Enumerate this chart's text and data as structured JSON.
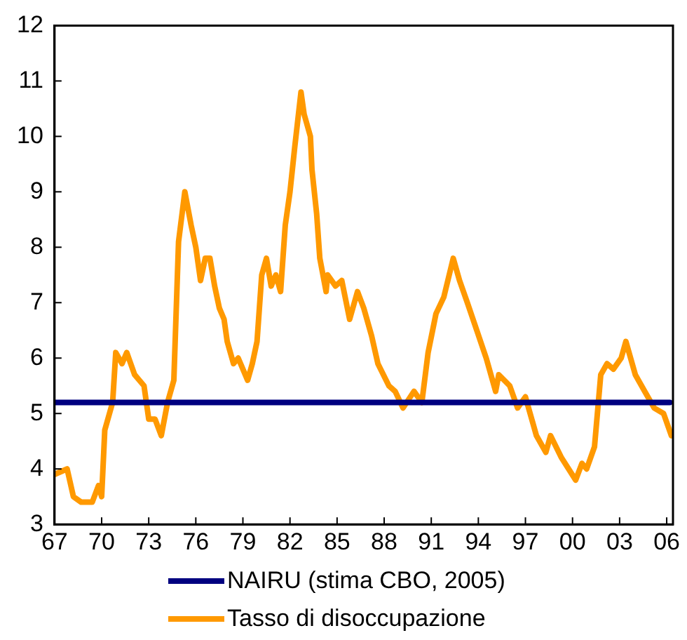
{
  "chart_data": {
    "type": "line",
    "xlim": [
      1967,
      2006.4
    ],
    "ylim": [
      3,
      12
    ],
    "xticks": [
      {
        "value": 1967,
        "label": "67"
      },
      {
        "value": 1970,
        "label": "70"
      },
      {
        "value": 1973,
        "label": "73"
      },
      {
        "value": 1976,
        "label": "76"
      },
      {
        "value": 1979,
        "label": "79"
      },
      {
        "value": 1982,
        "label": "82"
      },
      {
        "value": 1985,
        "label": "85"
      },
      {
        "value": 1988,
        "label": "88"
      },
      {
        "value": 1991,
        "label": "91"
      },
      {
        "value": 1994,
        "label": "94"
      },
      {
        "value": 1997,
        "label": "97"
      },
      {
        "value": 2000,
        "label": "00"
      },
      {
        "value": 2003,
        "label": "03"
      },
      {
        "value": 2006,
        "label": "06"
      }
    ],
    "yticks": [
      3,
      4,
      5,
      6,
      7,
      8,
      9,
      10,
      11,
      12
    ],
    "grid": false,
    "legend": "bottom",
    "marker": "none",
    "line_style": "solid",
    "series": [
      {
        "name": "NAIRU (stima CBO, 2005)",
        "color": "#000080",
        "x": [
          1967,
          2006.2
        ],
        "values": [
          5.2,
          5.2
        ]
      },
      {
        "name": "Tasso di disoccupazione",
        "color": "#ff9900",
        "x": [
          1967.0,
          1967.8,
          1968.2,
          1968.7,
          1969.4,
          1969.8,
          1970.0,
          1970.2,
          1970.7,
          1970.9,
          1971.3,
          1971.6,
          1972.1,
          1972.7,
          1973.0,
          1973.4,
          1973.8,
          1974.2,
          1974.6,
          1974.9,
          1975.3,
          1975.7,
          1976.0,
          1976.3,
          1976.6,
          1976.9,
          1977.2,
          1977.5,
          1977.8,
          1978.0,
          1978.4,
          1978.7,
          1979.3,
          1979.6,
          1979.9,
          1980.2,
          1980.5,
          1980.8,
          1981.1,
          1981.4,
          1981.7,
          1982.0,
          1982.3,
          1982.7,
          1982.9,
          1983.3,
          1983.4,
          1983.7,
          1983.9,
          1984.3,
          1984.4,
          1984.9,
          1985.3,
          1985.8,
          1986.3,
          1986.7,
          1987.2,
          1987.6,
          1988.3,
          1988.7,
          1989.2,
          1989.9,
          1990.4,
          1990.8,
          1991.3,
          1991.8,
          1992.4,
          1992.8,
          1993.3,
          1993.9,
          1994.5,
          1995.1,
          1995.3,
          1996.0,
          1996.5,
          1997.0,
          1997.7,
          1998.3,
          1998.6,
          1999.3,
          2000.2,
          2000.6,
          2000.9,
          2001.4,
          2001.8,
          2002.2,
          2002.6,
          2003.1,
          2003.4,
          2004.0,
          2004.6,
          2005.2,
          2005.8,
          2006.3
        ],
        "values": [
          3.9,
          4.0,
          3.5,
          3.4,
          3.4,
          3.7,
          3.5,
          4.7,
          5.2,
          6.1,
          5.9,
          6.1,
          5.7,
          5.5,
          4.9,
          4.9,
          4.6,
          5.2,
          5.6,
          8.1,
          9.0,
          8.4,
          8.0,
          7.4,
          7.8,
          7.8,
          7.3,
          6.9,
          6.7,
          6.3,
          5.9,
          6.0,
          5.6,
          5.9,
          6.3,
          7.5,
          7.8,
          7.3,
          7.5,
          7.2,
          8.4,
          9.0,
          9.8,
          10.8,
          10.4,
          10.0,
          9.4,
          8.6,
          7.8,
          7.2,
          7.5,
          7.3,
          7.4,
          6.7,
          7.2,
          6.9,
          6.4,
          5.9,
          5.5,
          5.4,
          5.1,
          5.4,
          5.2,
          6.1,
          6.8,
          7.1,
          7.8,
          7.4,
          7.0,
          6.5,
          6.0,
          5.4,
          5.7,
          5.5,
          5.1,
          5.3,
          4.6,
          4.3,
          4.6,
          4.2,
          3.8,
          4.1,
          4.0,
          4.4,
          5.7,
          5.9,
          5.8,
          6.0,
          6.3,
          5.7,
          5.4,
          5.1,
          5.0,
          4.6
        ]
      }
    ]
  }
}
